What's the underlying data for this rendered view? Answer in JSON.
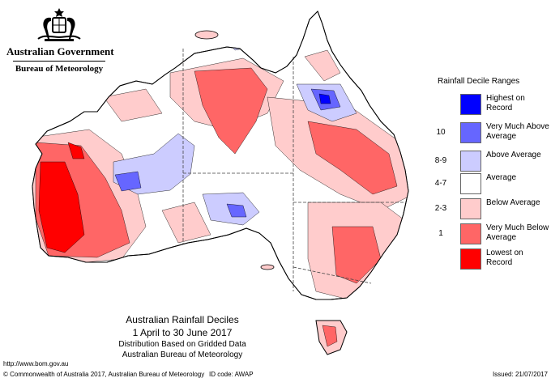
{
  "header": {
    "government": "Australian Government",
    "bureau": "Bureau of Meteorology"
  },
  "legend": {
    "title": "Rainfall Decile Ranges",
    "items": [
      {
        "code": "",
        "label": "Highest on Record",
        "color": "#0000ff"
      },
      {
        "code": "10",
        "label": "Very Much Above Average",
        "color": "#6666ff"
      },
      {
        "code": "8-9",
        "label": "Above Average",
        "color": "#ccccff"
      },
      {
        "code": "4-7",
        "label": "Average",
        "color": "#ffffff"
      },
      {
        "code": "2-3",
        "label": "Below Average",
        "color": "#ffcccc"
      },
      {
        "code": "1",
        "label": "Very Much Below Average",
        "color": "#ff6666"
      },
      {
        "code": "",
        "label": "Lowest on Record",
        "color": "#ff0000"
      }
    ]
  },
  "map_title": {
    "line1": "Australian Rainfall Deciles",
    "line2": "1 April to 30 June 2017",
    "line3": "Distribution Based on Gridded Data",
    "line4": "Australian Bureau of Meteorology"
  },
  "footer": {
    "url": "http://www.bom.gov.au",
    "copyright": "© Commonwealth of Australia 2017, Australian Bureau of Meteorology",
    "id_code": "ID code: AWAP",
    "issued": "Issued: 21/07/2017"
  }
}
